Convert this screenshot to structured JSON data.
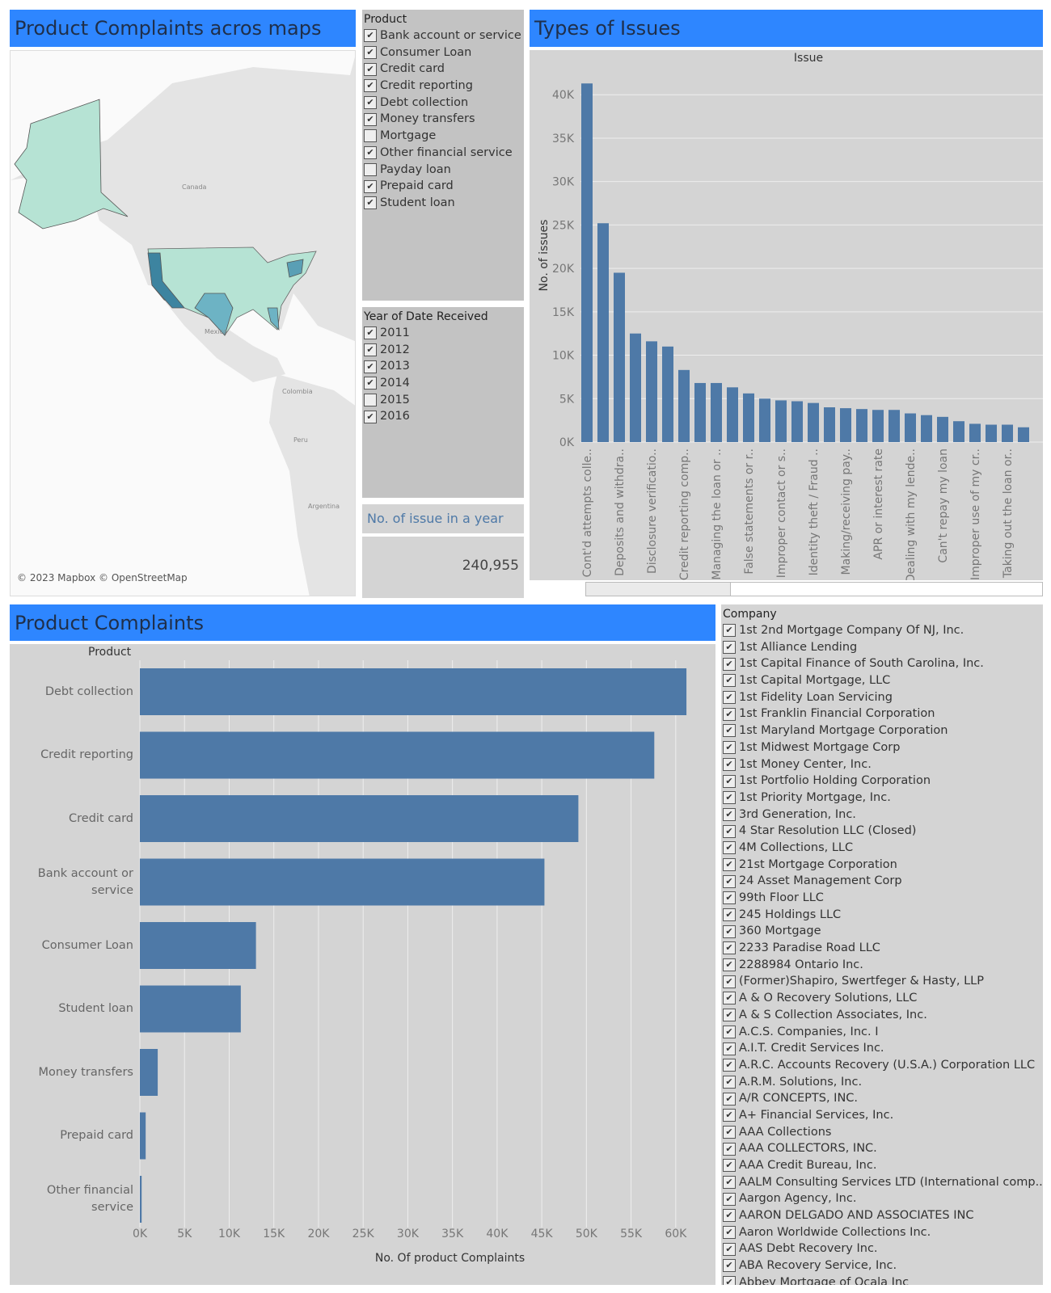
{
  "map_panel": {
    "title": "Product Complaints acros maps",
    "labels": [
      "Canada",
      "Mexico",
      "Colombia",
      "Peru",
      "Argentina"
    ],
    "attribution": "© 2023 Mapbox © OpenStreetMap"
  },
  "product_filter": {
    "title": "Product",
    "items": [
      {
        "label": "Bank account or service",
        "checked": true
      },
      {
        "label": "Consumer Loan",
        "checked": true
      },
      {
        "label": "Credit card",
        "checked": true
      },
      {
        "label": "Credit reporting",
        "checked": true
      },
      {
        "label": "Debt collection",
        "checked": true
      },
      {
        "label": "Money transfers",
        "checked": true
      },
      {
        "label": "Mortgage",
        "checked": false
      },
      {
        "label": "Other financial service",
        "checked": true
      },
      {
        "label": "Payday loan",
        "checked": false
      },
      {
        "label": "Prepaid card",
        "checked": true
      },
      {
        "label": "Student loan",
        "checked": true
      }
    ]
  },
  "year_filter": {
    "title": "Year of Date Received",
    "items": [
      {
        "label": "2011",
        "checked": true
      },
      {
        "label": "2012",
        "checked": true
      },
      {
        "label": "2013",
        "checked": true
      },
      {
        "label": "2014",
        "checked": true
      },
      {
        "label": "2015",
        "checked": false
      },
      {
        "label": "2016",
        "checked": true
      }
    ]
  },
  "kpi": {
    "title": "No. of issue in a year",
    "value": "240,955"
  },
  "chart_data": [
    {
      "type": "bar",
      "title": "Types of Issues",
      "header": "Issue",
      "y_label": "No. of issues",
      "color": "#4e79a7",
      "grid": true,
      "categories": [
        "Cont'd attempts colle..",
        null,
        "Deposits and withdra..",
        null,
        "Disclosure verificatio..",
        null,
        "Credit reporting comp..",
        null,
        "Managing the loan or ..",
        null,
        "False statements or r..",
        null,
        "Improper contact or s..",
        null,
        "Identity theft / Fraud ..",
        null,
        "Making/receiving pay..",
        null,
        "APR or interest rate",
        null,
        "Dealing with my lende..",
        null,
        "Can't repay my loan",
        null,
        "Improper use of my cr..",
        null,
        "Taking out the loan or..",
        null
      ],
      "values": [
        41300,
        25200,
        19500,
        12500,
        11600,
        11000,
        8300,
        6800,
        6800,
        6300,
        5600,
        5000,
        4800,
        4700,
        4500,
        4000,
        3900,
        3800,
        3700,
        3700,
        3300,
        3100,
        2900,
        2400,
        2100,
        2000,
        2000,
        1700
      ],
      "ylim": [
        0,
        43000
      ],
      "yticks": [
        {
          "value": 0,
          "label": "0K"
        },
        {
          "value": 5000,
          "label": "5K"
        },
        {
          "value": 10000,
          "label": "10K"
        },
        {
          "value": 15000,
          "label": "15K"
        },
        {
          "value": 20000,
          "label": "20K"
        },
        {
          "value": 25000,
          "label": "25K"
        },
        {
          "value": 30000,
          "label": "30K"
        },
        {
          "value": 35000,
          "label": "35K"
        },
        {
          "value": 40000,
          "label": "40K"
        }
      ]
    },
    {
      "type": "hbar",
      "title": "Product Complaints",
      "header": "Product",
      "x_label": "No. Of product Complaints",
      "color": "#4e79a7",
      "grid": true,
      "categories": [
        "Debt collection",
        "Credit reporting",
        "Credit card",
        "Bank account or service",
        "Consumer Loan",
        "Student loan",
        "Money transfers",
        "Prepaid card",
        "Other financial service"
      ],
      "values": [
        61200,
        57600,
        49100,
        45300,
        13000,
        11300,
        2000,
        650,
        200
      ],
      "xlim": [
        0,
        64000
      ],
      "xticks": [
        {
          "value": 0,
          "label": "0K"
        },
        {
          "value": 5000,
          "label": "5K"
        },
        {
          "value": 10000,
          "label": "10K"
        },
        {
          "value": 15000,
          "label": "15K"
        },
        {
          "value": 20000,
          "label": "20K"
        },
        {
          "value": 25000,
          "label": "25K"
        },
        {
          "value": 30000,
          "label": "30K"
        },
        {
          "value": 35000,
          "label": "35K"
        },
        {
          "value": 40000,
          "label": "40K"
        },
        {
          "value": 45000,
          "label": "45K"
        },
        {
          "value": 50000,
          "label": "50K"
        },
        {
          "value": 55000,
          "label": "55K"
        },
        {
          "value": 60000,
          "label": "60K"
        }
      ]
    }
  ],
  "company_filter": {
    "title": "Company",
    "items": [
      {
        "label": "1st 2nd Mortgage Company Of NJ, Inc.",
        "checked": true
      },
      {
        "label": "1st Alliance Lending",
        "checked": true
      },
      {
        "label": "1st Capital Finance of South Carolina, Inc.",
        "checked": true
      },
      {
        "label": "1st Capital Mortgage, LLC",
        "checked": true
      },
      {
        "label": "1st Fidelity Loan Servicing",
        "checked": true
      },
      {
        "label": "1st Franklin Financial Corporation",
        "checked": true
      },
      {
        "label": "1st Maryland Mortgage Corporation",
        "checked": true
      },
      {
        "label": "1st Midwest Mortgage Corp",
        "checked": true
      },
      {
        "label": "1st Money Center, Inc.",
        "checked": true
      },
      {
        "label": "1st Portfolio Holding Corporation",
        "checked": true
      },
      {
        "label": "1st Priority Mortgage, Inc.",
        "checked": true
      },
      {
        "label": "3rd Generation, Inc.",
        "checked": true
      },
      {
        "label": "4 Star Resolution LLC (Closed)",
        "checked": true
      },
      {
        "label": "4M Collections, LLC",
        "checked": true
      },
      {
        "label": "21st Mortgage Corporation",
        "checked": true
      },
      {
        "label": "24 Asset Management Corp",
        "checked": true
      },
      {
        "label": "99th Floor LLC",
        "checked": true
      },
      {
        "label": "245 Holdings LLC",
        "checked": true
      },
      {
        "label": "360 Mortgage",
        "checked": true
      },
      {
        "label": "2233 Paradise Road LLC",
        "checked": true
      },
      {
        "label": "2288984 Ontario Inc.",
        "checked": true
      },
      {
        "label": "(Former)Shapiro, Swertfeger & Hasty, LLP",
        "checked": true
      },
      {
        "label": "A & O Recovery Solutions, LLC",
        "checked": true
      },
      {
        "label": "A & S Collection Associates, Inc.",
        "checked": true
      },
      {
        "label": "A.C.S. Companies, Inc. I",
        "checked": true
      },
      {
        "label": "A.I.T. Credit Services Inc.",
        "checked": true
      },
      {
        "label": "A.R.C. Accounts Recovery (U.S.A.) Corporation LLC",
        "checked": true
      },
      {
        "label": "A.R.M. Solutions, Inc.",
        "checked": true
      },
      {
        "label": "A/R CONCEPTS, INC.",
        "checked": true
      },
      {
        "label": "A+ Financial Services, Inc.",
        "checked": true
      },
      {
        "label": "AAA Collections",
        "checked": true
      },
      {
        "label": "AAA COLLECTORS, INC.",
        "checked": true
      },
      {
        "label": "AAA Credit Bureau, Inc.",
        "checked": true
      },
      {
        "label": "AALM Consulting Services LTD (International comp..",
        "checked": true
      },
      {
        "label": "Aargon Agency, Inc.",
        "checked": true
      },
      {
        "label": "AARON DELGADO AND ASSOCIATES INC",
        "checked": true
      },
      {
        "label": "Aaron Worldwide Collections Inc.",
        "checked": true
      },
      {
        "label": "AAS Debt Recovery Inc.",
        "checked": true
      },
      {
        "label": "ABA Recovery Service, Inc.",
        "checked": true
      },
      {
        "label": "Abbey Mortgage of Ocala Inc",
        "checked": true
      }
    ]
  }
}
